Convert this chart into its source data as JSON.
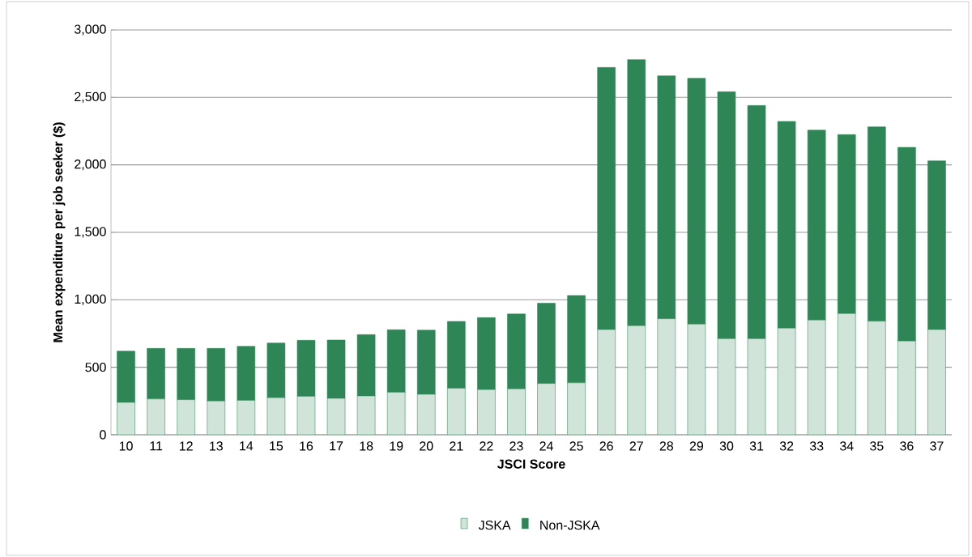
{
  "chart_data": {
    "type": "bar",
    "stacked": true,
    "xlabel": "JSCI Score",
    "ylabel": "Mean expenditure per job seeker ($)",
    "categories": [
      "10",
      "11",
      "12",
      "13",
      "14",
      "15",
      "16",
      "17",
      "18",
      "19",
      "20",
      "21",
      "22",
      "23",
      "24",
      "25",
      "26",
      "27",
      "28",
      "29",
      "30",
      "31",
      "32",
      "33",
      "34",
      "35",
      "36",
      "37"
    ],
    "series": [
      {
        "name": "JSKA",
        "color": "#2e8555",
        "values": [
          240,
          265,
          260,
          250,
          255,
          275,
          285,
          270,
          288,
          315,
          300,
          345,
          335,
          340,
          380,
          385,
          780,
          808,
          860,
          820,
          712,
          712,
          790,
          850,
          898,
          842,
          695,
          780
        ]
      },
      {
        "name": "Non-JSKA",
        "color": "#2e8555",
        "values": [
          380,
          375,
          380,
          390,
          400,
          405,
          415,
          432,
          454,
          463,
          475,
          495,
          533,
          555,
          595,
          647,
          1942,
          1972,
          1800,
          1822,
          1830,
          1728,
          1532,
          1408,
          1327,
          1440,
          1435,
          1250
        ]
      }
    ],
    "ylim": [
      0,
      3000
    ],
    "yticks": [
      0,
      500,
      {
        "value": 1000,
        "label": "1,000"
      },
      {
        "value": 1500,
        "label": "1,500"
      },
      {
        "value": 2000,
        "label": "2,000"
      },
      {
        "value": 2500,
        "label": "2,500"
      },
      {
        "value": 3000,
        "label": "3,000"
      }
    ],
    "grid": "y",
    "legend": "bottom"
  }
}
